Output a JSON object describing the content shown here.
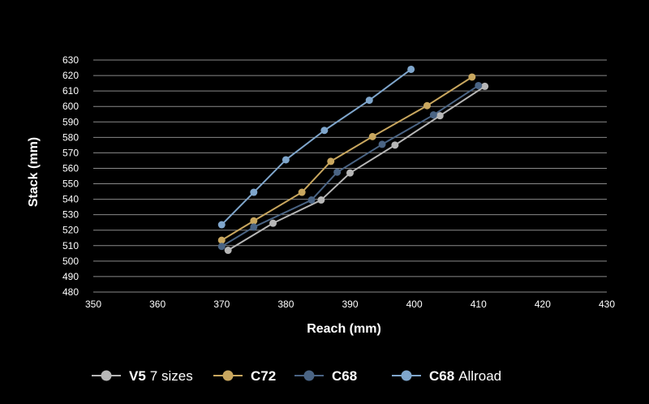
{
  "chart_data": {
    "type": "line",
    "title": "",
    "xlabel": "Reach (mm)",
    "ylabel": "Stack (mm)",
    "xlim": [
      350,
      430
    ],
    "ylim": [
      480,
      630
    ],
    "xticks": [
      "350",
      "360",
      "370",
      "380",
      "390",
      "400",
      "410",
      "420",
      "430"
    ],
    "yticks": [
      "630",
      "620",
      "610",
      "600",
      "590",
      "580",
      "570",
      "560",
      "550",
      "540",
      "530",
      "520",
      "510",
      "500",
      "490",
      "480"
    ],
    "grid": true,
    "legend_position": "bottom",
    "series": [
      {
        "name": "V5",
        "name_suffix": "7 sizes",
        "color": "#b7b7b7",
        "points": [
          [
            371,
            507
          ],
          [
            378,
            524.5
          ],
          [
            385.5,
            539.5
          ],
          [
            390,
            557
          ],
          [
            397,
            575
          ],
          [
            404,
            594
          ],
          [
            411,
            613
          ]
        ]
      },
      {
        "name": "C72",
        "name_suffix": "",
        "color": "#c9a75f",
        "points": [
          [
            370,
            513.5
          ],
          [
            375,
            526
          ],
          [
            382.5,
            544.5
          ],
          [
            387,
            564.5
          ],
          [
            393.5,
            580.5
          ],
          [
            402,
            600.5
          ],
          [
            409,
            619
          ]
        ]
      },
      {
        "name": "C68",
        "name_suffix": "",
        "color": "#4a6484",
        "points": [
          [
            370,
            509.5
          ],
          [
            375,
            522
          ],
          [
            384,
            539.5
          ],
          [
            388,
            557.5
          ],
          [
            395,
            575.5
          ],
          [
            403,
            594.5
          ],
          [
            410,
            613.5
          ]
        ]
      },
      {
        "name": "C68",
        "name_suffix": "Allroad",
        "color": "#7fa6cc",
        "points": [
          [
            370,
            523.5
          ],
          [
            375,
            544.5
          ],
          [
            380,
            565.5
          ],
          [
            386,
            584.5
          ],
          [
            393,
            604
          ],
          [
            399.5,
            624
          ]
        ]
      }
    ]
  }
}
